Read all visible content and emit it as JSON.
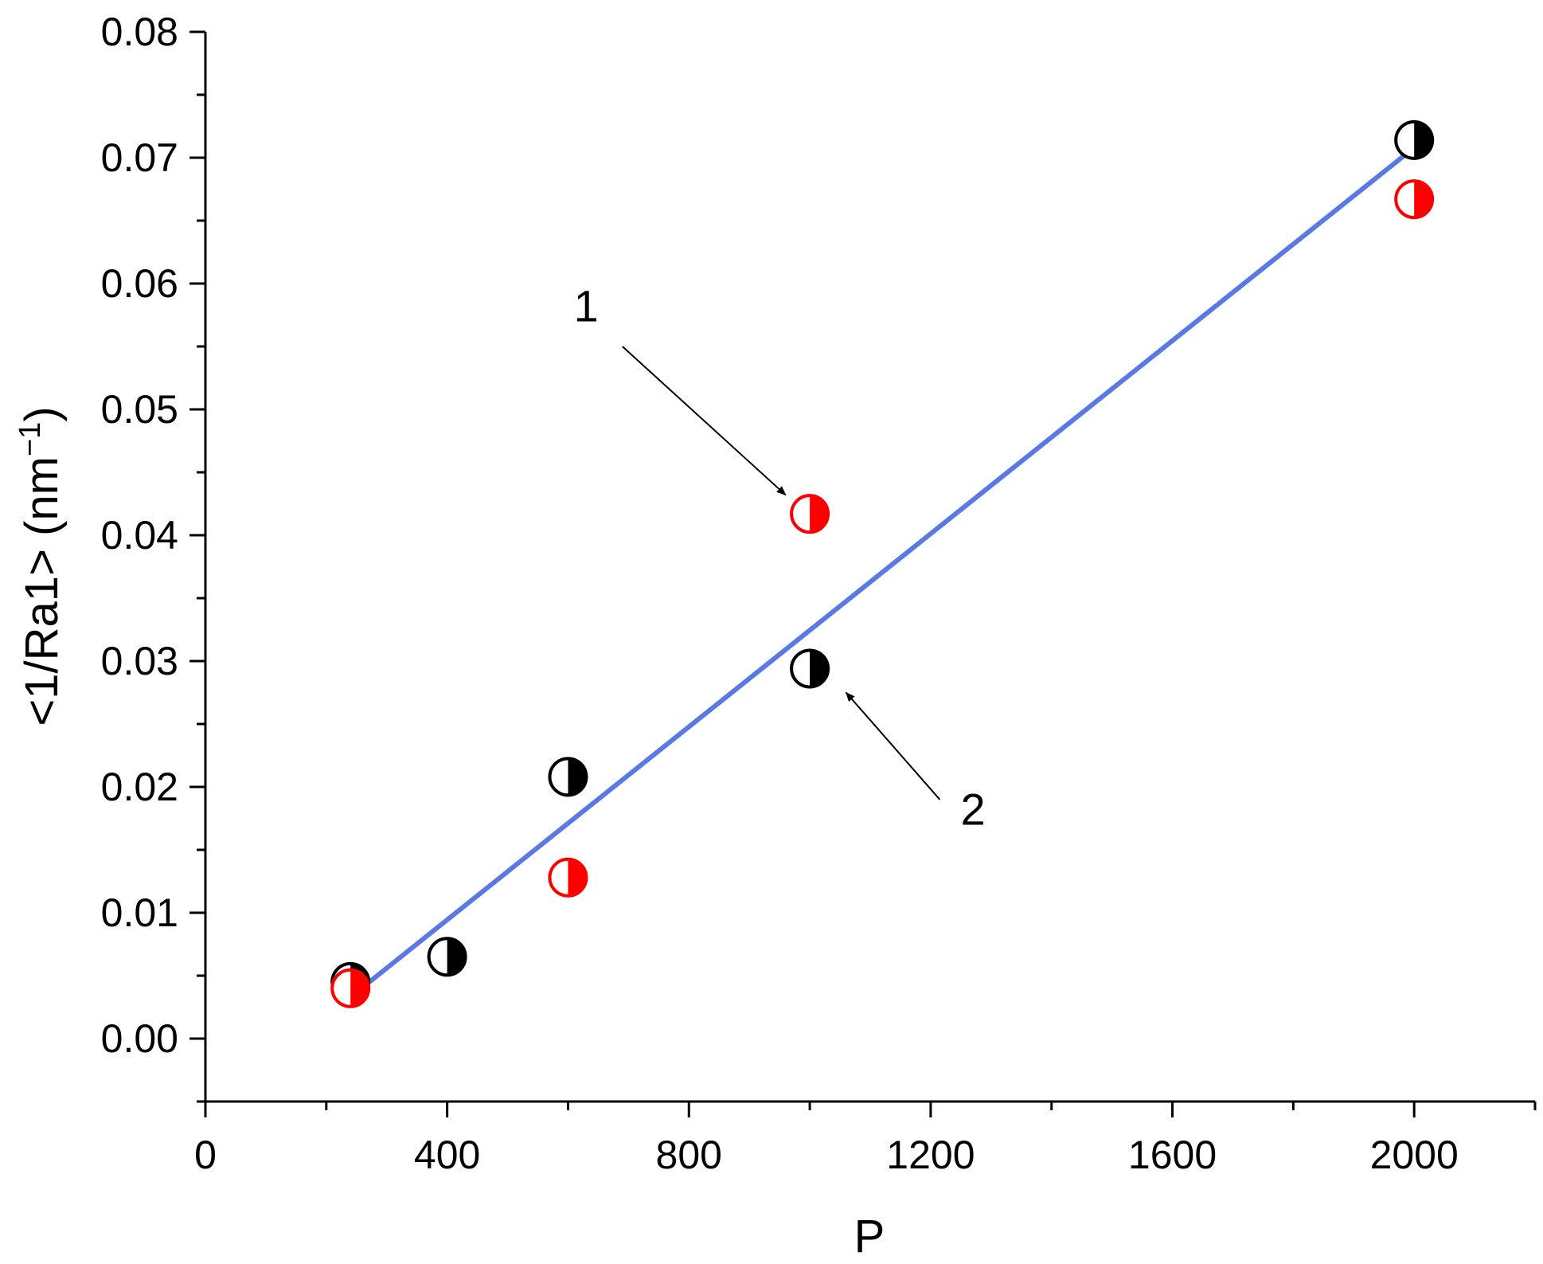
{
  "chart_data": {
    "type": "scatter",
    "xlabel": "P",
    "ylabel": "<1/Ra1> (nm",
    "ylabel_sup": "−1",
    "ylabel_close": ")",
    "xlim": [
      0,
      2200
    ],
    "ylim": [
      -0.005,
      0.08
    ],
    "x_ticks": [
      {
        "value": 0,
        "label": "0"
      },
      {
        "value": 400,
        "label": "400"
      },
      {
        "value": 800,
        "label": "800"
      },
      {
        "value": 1200,
        "label": "1200"
      },
      {
        "value": 1600,
        "label": "1600"
      },
      {
        "value": 2000,
        "label": "2000"
      }
    ],
    "x_minor_ticks": [
      200,
      600,
      1000,
      1400,
      1800,
      2200
    ],
    "y_ticks": [
      {
        "value": 0.0,
        "label": "0.00"
      },
      {
        "value": 0.01,
        "label": "0.01"
      },
      {
        "value": 0.02,
        "label": "0.02"
      },
      {
        "value": 0.03,
        "label": "0.03"
      },
      {
        "value": 0.04,
        "label": "0.04"
      },
      {
        "value": 0.05,
        "label": "0.05"
      },
      {
        "value": 0.06,
        "label": "0.06"
      },
      {
        "value": 0.07,
        "label": "0.07"
      },
      {
        "value": 0.08,
        "label": "0.08"
      }
    ],
    "y_minor_ticks": [
      -0.005,
      0.005,
      0.015,
      0.025,
      0.035,
      0.045,
      0.055,
      0.065,
      0.075
    ],
    "series": [
      {
        "color": "#000000",
        "marker": "half-filled-right",
        "points": [
          {
            "x": 240,
            "y": 0.0045
          },
          {
            "x": 400,
            "y": 0.0065
          },
          {
            "x": 600,
            "y": 0.0208
          },
          {
            "x": 1000,
            "y": 0.0294
          },
          {
            "x": 2000,
            "y": 0.0714
          }
        ]
      },
      {
        "color": "#ff0000",
        "marker": "half-filled-right",
        "points": [
          {
            "x": 240,
            "y": 0.004
          },
          {
            "x": 600,
            "y": 0.0128
          },
          {
            "x": 1000,
            "y": 0.0417
          },
          {
            "x": 2000,
            "y": 0.0667
          }
        ]
      }
    ],
    "fit_line": {
      "color": "#5a78e6",
      "x": [
        240,
        2000
      ],
      "y": [
        0.0033,
        0.0708
      ]
    },
    "annotations": [
      {
        "text": "1",
        "label_x": 630,
        "label_y": 0.057,
        "tail_x": 690,
        "tail_y": 0.055,
        "head_x": 960,
        "head_y": 0.0432
      },
      {
        "text": "2",
        "label_x": 1270,
        "label_y": 0.017,
        "tail_x": 1215,
        "tail_y": 0.019,
        "head_x": 1060,
        "head_y": 0.0275
      }
    ],
    "grid": false,
    "legend": "none"
  }
}
